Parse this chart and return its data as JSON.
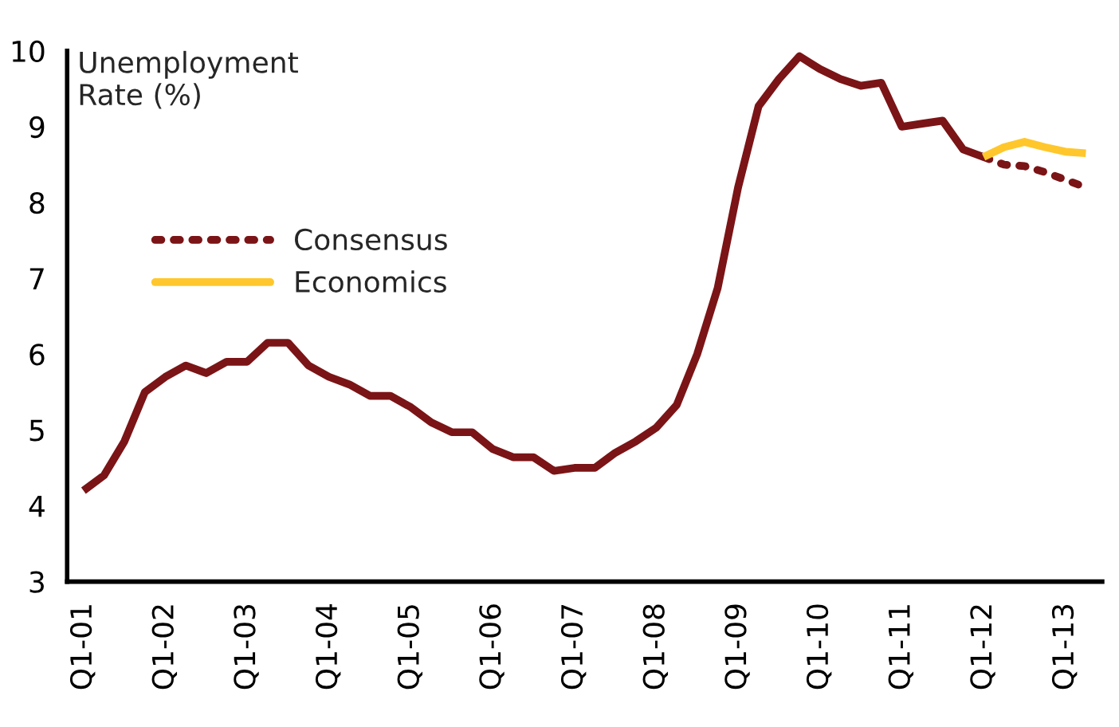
{
  "chart_data": {
    "type": "line",
    "ylabel": "Unemployment\nRate (%)",
    "categories": [
      "Q1-01",
      null,
      null,
      null,
      "Q1-02",
      null,
      null,
      null,
      "Q1-03",
      null,
      null,
      null,
      "Q1-04",
      null,
      null,
      null,
      "Q1-05",
      null,
      null,
      null,
      "Q1-06",
      null,
      null,
      null,
      "Q1-07",
      null,
      null,
      null,
      "Q1-08",
      null,
      null,
      null,
      "Q1-09",
      null,
      null,
      null,
      "Q1-10",
      null,
      null,
      null,
      "Q1-11",
      null,
      null,
      null,
      "Q1-12",
      null,
      null,
      null,
      "Q1-13",
      null
    ],
    "series": [
      {
        "color": "#7b1416",
        "line_style": "solid",
        "values": [
          4.2,
          4.4,
          4.85,
          5.5,
          5.7,
          5.85,
          5.75,
          5.9,
          5.9,
          6.15,
          6.15,
          5.85,
          5.7,
          5.6,
          5.45,
          5.45,
          5.3,
          5.1,
          4.97,
          4.97,
          4.75,
          4.64,
          4.64,
          4.46,
          4.5,
          4.5,
          4.7,
          4.85,
          5.03,
          5.33,
          6.0,
          6.87,
          8.2,
          9.27,
          9.63,
          9.93,
          9.76,
          9.63,
          9.54,
          9.58,
          9.0,
          9.04,
          9.08,
          8.7,
          8.6,
          null,
          null,
          null,
          null,
          null
        ]
      },
      {
        "name": "Consensus",
        "color": "#7b1416",
        "line_style": "dotted",
        "values": [
          null,
          null,
          null,
          null,
          null,
          null,
          null,
          null,
          null,
          null,
          null,
          null,
          null,
          null,
          null,
          null,
          null,
          null,
          null,
          null,
          null,
          null,
          null,
          null,
          null,
          null,
          null,
          null,
          null,
          null,
          null,
          null,
          null,
          null,
          null,
          null,
          null,
          null,
          null,
          null,
          null,
          null,
          null,
          null,
          8.6,
          8.5,
          8.48,
          8.4,
          8.3,
          8.2
        ]
      },
      {
        "name": "Economics",
        "color": "#ffc72c",
        "line_style": "solid",
        "values": [
          null,
          null,
          null,
          null,
          null,
          null,
          null,
          null,
          null,
          null,
          null,
          null,
          null,
          null,
          null,
          null,
          null,
          null,
          null,
          null,
          null,
          null,
          null,
          null,
          null,
          null,
          null,
          null,
          null,
          null,
          null,
          null,
          null,
          null,
          null,
          null,
          null,
          null,
          null,
          null,
          null,
          null,
          null,
          null,
          8.6,
          8.73,
          8.8,
          8.73,
          8.67,
          8.65
        ]
      }
    ],
    "ylim": [
      3,
      10
    ],
    "yticks": [
      3,
      4,
      5,
      6,
      7,
      8,
      9,
      10
    ],
    "legend": "left",
    "grid": false
  }
}
